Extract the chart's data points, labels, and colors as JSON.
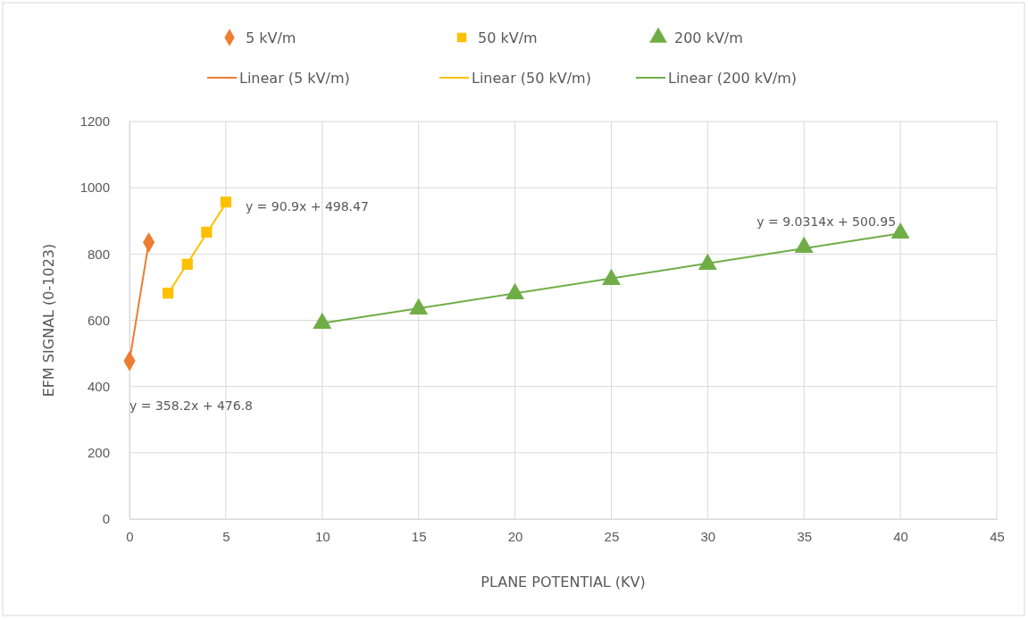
{
  "chart_data": {
    "type": "scatter",
    "xlabel": "PLANE POTENTIAL (KV)",
    "ylabel": "EFM SIGNAL (0-1023)",
    "xlim": [
      0,
      45
    ],
    "xticks": [
      0,
      5,
      10,
      15,
      20,
      25,
      30,
      35,
      40,
      45
    ],
    "ylim": [
      0,
      1200
    ],
    "yticks": [
      0,
      200,
      400,
      600,
      800,
      1000,
      1200
    ],
    "grid": true,
    "legend": "top",
    "series": [
      {
        "name": "5 kV/m",
        "type": "scatter",
        "marker": "diamond",
        "color": "#ed7d31",
        "x": [
          0,
          1
        ],
        "values": [
          477,
          835
        ]
      },
      {
        "name": "50 kV/m",
        "type": "scatter",
        "marker": "square",
        "color": "#ffc000",
        "x": [
          2,
          3,
          4,
          5
        ],
        "values": [
          682,
          769,
          866,
          957
        ]
      },
      {
        "name": "200 kV/m",
        "type": "scatter",
        "marker": "triangle",
        "color": "#70ad47",
        "x": [
          10,
          15,
          20,
          25,
          30,
          35,
          40
        ],
        "values": [
          591,
          634,
          680,
          723,
          769,
          820,
          863
        ]
      },
      {
        "name": "Linear (5 kV/m)",
        "type": "line",
        "marker": "none",
        "color": "#ed7d31",
        "x": [
          0,
          1
        ],
        "values": [
          477,
          835
        ]
      },
      {
        "name": "Linear (50 kV/m)",
        "type": "line",
        "marker": "none",
        "color": "#ffc000",
        "x": [
          2,
          5
        ],
        "values": [
          680,
          953
        ]
      },
      {
        "name": "Linear (200 kV/m)",
        "type": "line",
        "marker": "none",
        "color": "#70ad47",
        "x": [
          10,
          40
        ],
        "values": [
          591,
          862
        ]
      }
    ],
    "annotations": [
      "y = 358.2x + 476.8",
      "y = 90.9x + 498.47",
      "y = 9.0314x + 500.95"
    ]
  }
}
